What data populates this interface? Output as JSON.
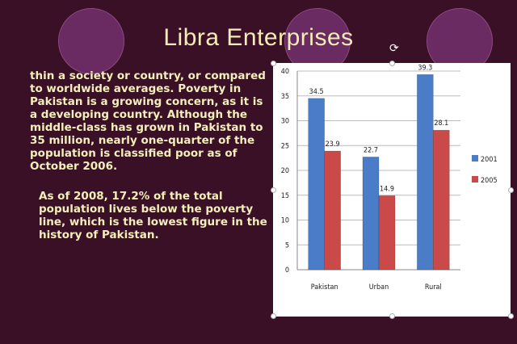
{
  "slide": {
    "title": "Libra Enterprises",
    "rotate_icon": "rotate-icon",
    "paragraph1": "thin a society or country, or compared to worldwide averages. Poverty in Pakistan is a growing concern, as it is a developing country. Although the middle-class has grown in Pakistan to 35 million, nearly one-quarter of the population is classified poor as of October 2006.",
    "paragraph2": "As of 2008, 17.2% of the total population lives below the poverty line, which is the lowest figure in the history of Pakistan.",
    "colors": {
      "background": "#3a1026",
      "circle": "#6a2a62",
      "text": "#f4efba",
      "series_2001": "#4a7cc7",
      "series_2005": "#c94a48"
    }
  },
  "chart_data": {
    "type": "bar",
    "categories": [
      "Pakistan",
      "Urban",
      "Rural"
    ],
    "series": [
      {
        "name": "2001",
        "values": [
          34.5,
          22.7,
          39.3
        ],
        "labels": [
          "34.5",
          "22.7",
          "39.3"
        ]
      },
      {
        "name": "2005",
        "values": [
          23.9,
          14.9,
          28.1
        ],
        "labels": [
          "23.9",
          "14.9",
          "28.1"
        ]
      }
    ],
    "yticks": [
      "0",
      "5",
      "10",
      "15",
      "20",
      "25",
      "30",
      "35",
      "40"
    ],
    "ylim": [
      0,
      40
    ],
    "grid": true,
    "legend": "right"
  }
}
